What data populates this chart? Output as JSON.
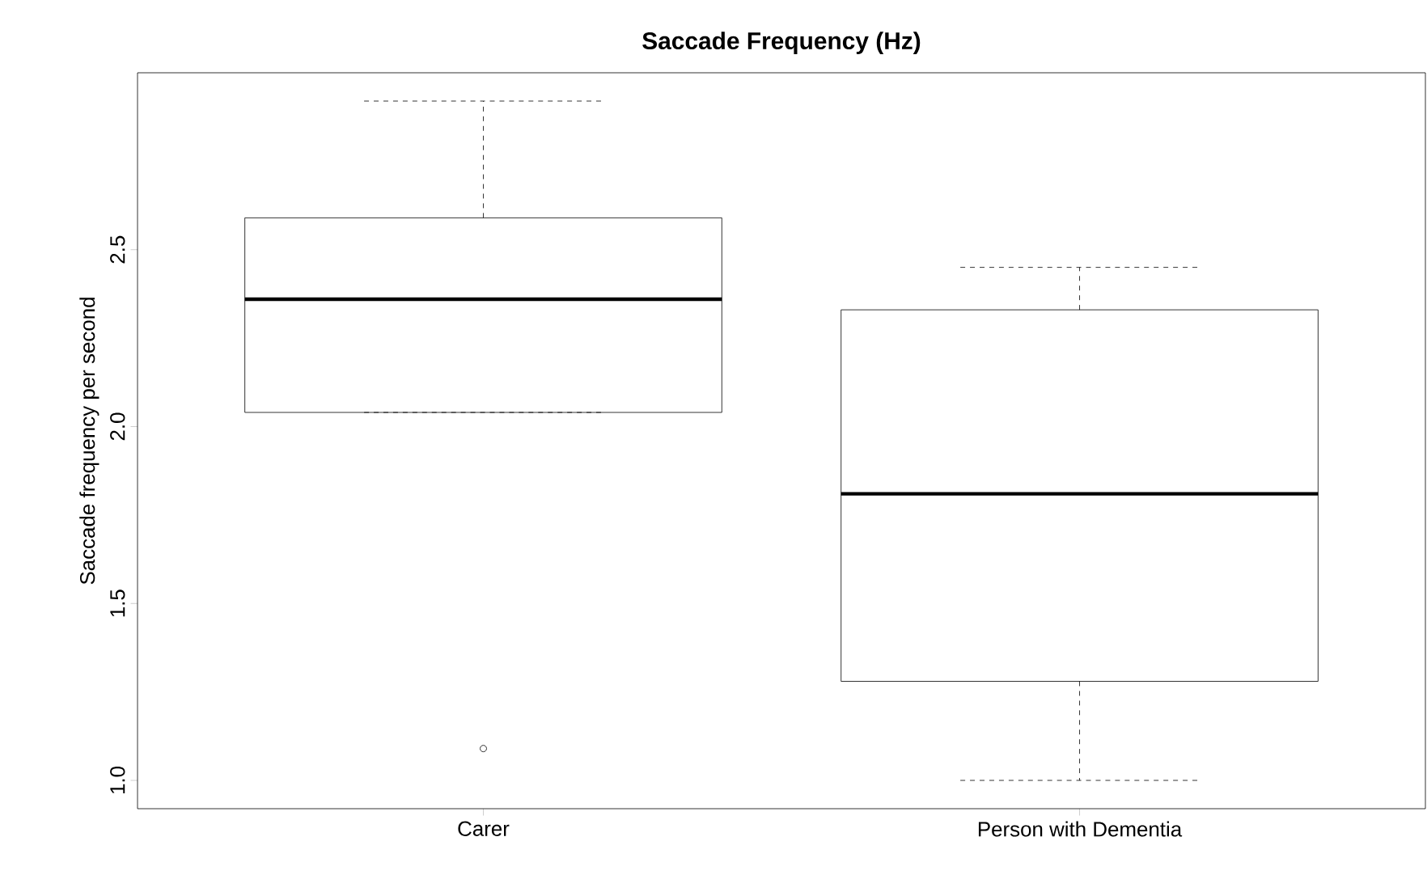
{
  "chart_data": {
    "type": "box",
    "title": "Saccade Frequency (Hz)",
    "ylabel": "Saccade frequency per second",
    "categories": [
      "Carer",
      "Person with Dementia"
    ],
    "boxes": [
      {
        "low": 2.04,
        "q1": 2.04,
        "median": 2.36,
        "q3": 2.59,
        "high": 2.92,
        "outliers": [
          1.09
        ]
      },
      {
        "low": 1.0,
        "q1": 1.28,
        "median": 1.81,
        "q3": 2.33,
        "high": 2.45
      }
    ],
    "ylim": [
      0.92,
      3.0
    ],
    "yticks": [
      {
        "value": 1.0,
        "label": "1.0"
      },
      {
        "value": 1.5,
        "label": "1.5"
      },
      {
        "value": 2.0,
        "label": "2.0"
      },
      {
        "value": 2.5,
        "label": "2.5"
      }
    ]
  }
}
